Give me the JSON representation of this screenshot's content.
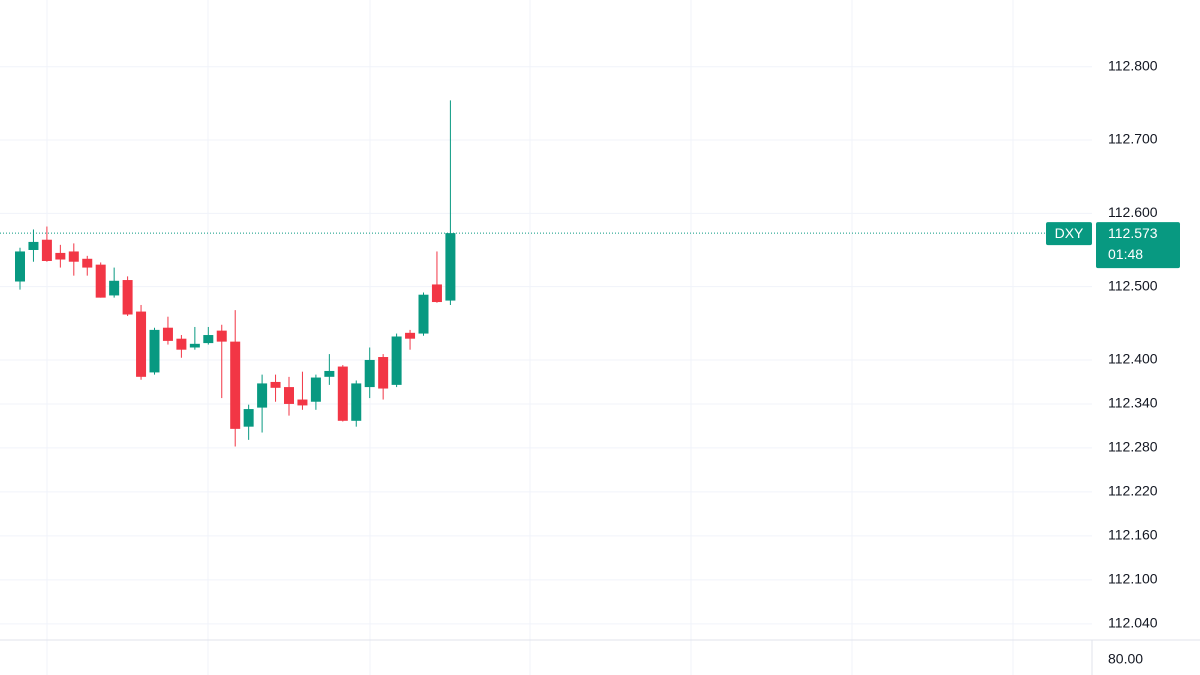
{
  "chart_data": {
    "type": "candlestick",
    "symbol": "DXY",
    "last_price": 112.573,
    "countdown": "01:48",
    "up_color": "#089981",
    "down_color": "#f23645",
    "open": [
      112.507,
      112.55,
      112.564,
      112.546,
      112.548,
      112.538,
      112.53,
      112.488,
      112.509,
      112.466,
      112.383,
      112.444,
      112.429,
      112.417,
      112.423,
      112.44,
      112.425,
      112.309,
      112.335,
      112.37,
      112.363,
      112.346,
      112.343,
      112.377,
      112.391,
      112.317,
      112.363,
      112.404,
      112.366,
      112.437,
      112.436,
      112.503,
      112.481
    ],
    "high": [
      112.553,
      112.578,
      112.582,
      112.557,
      112.559,
      112.542,
      112.533,
      112.526,
      112.514,
      112.475,
      112.444,
      112.459,
      112.434,
      112.445,
      112.445,
      112.448,
      112.468,
      112.339,
      112.38,
      112.38,
      112.377,
      112.384,
      112.38,
      112.408,
      112.393,
      112.372,
      112.417,
      112.408,
      112.436,
      112.441,
      112.492,
      112.548,
      112.754
    ],
    "low": [
      112.496,
      112.534,
      112.534,
      112.526,
      112.515,
      112.515,
      112.485,
      112.485,
      112.46,
      112.373,
      112.38,
      112.421,
      112.403,
      112.414,
      112.421,
      112.348,
      112.282,
      112.291,
      112.301,
      112.343,
      112.324,
      112.332,
      112.332,
      112.366,
      112.316,
      112.309,
      112.348,
      112.346,
      112.363,
      112.414,
      112.433,
      112.478,
      112.475
    ],
    "close": [
      112.548,
      112.561,
      112.535,
      112.537,
      112.534,
      112.526,
      112.485,
      112.508,
      112.462,
      112.377,
      112.441,
      112.426,
      112.414,
      112.422,
      112.434,
      112.425,
      112.306,
      112.333,
      112.368,
      112.362,
      112.34,
      112.338,
      112.376,
      112.385,
      112.317,
      112.368,
      112.4,
      112.361,
      112.432,
      112.429,
      112.489,
      112.479,
      112.573
    ],
    "ylim": [
      112.018,
      112.891
    ],
    "yticks": [
      {
        "value": 112.8,
        "label": "112.800"
      },
      {
        "value": 112.7,
        "label": "112.700"
      },
      {
        "value": 112.6,
        "label": "112.600"
      },
      {
        "value": 112.5,
        "label": "112.500"
      },
      {
        "value": 112.4,
        "label": "112.400"
      },
      {
        "value": 112.34,
        "label": "112.340"
      },
      {
        "value": 112.28,
        "label": "112.280"
      },
      {
        "value": 112.22,
        "label": "112.220"
      },
      {
        "value": 112.16,
        "label": "112.160"
      },
      {
        "value": 112.1,
        "label": "112.100"
      },
      {
        "value": 112.04,
        "label": "112.040"
      }
    ],
    "lower_pane_ticks": [
      {
        "value": 80,
        "label": "80.00"
      }
    ],
    "grid": true
  }
}
